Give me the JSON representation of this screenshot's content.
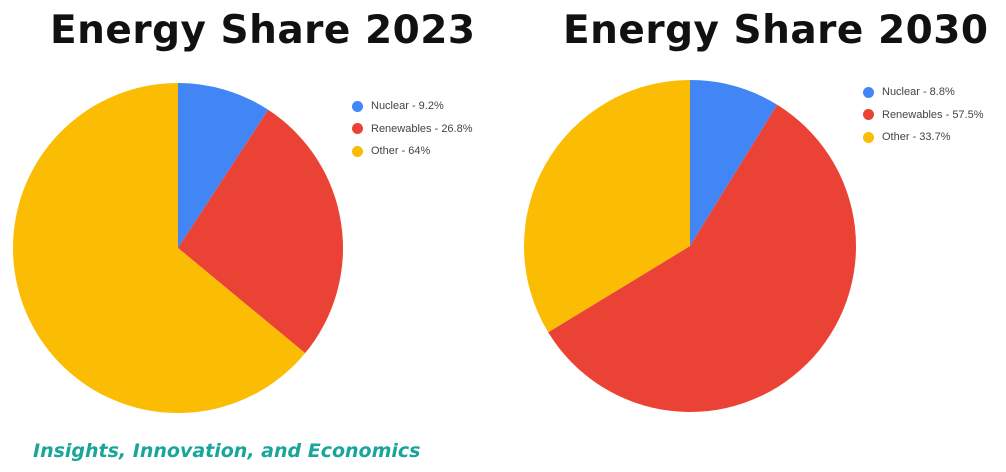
{
  "footer": {
    "tagline": "Insights, Innovation, and Economics"
  },
  "chart_data": [
    {
      "type": "pie",
      "title": "Energy Share 2023",
      "legend_position": "right",
      "slices": [
        {
          "label": "Nuclear - 9.2%",
          "name": "Nuclear",
          "value": 9.2,
          "color": "#4285f4"
        },
        {
          "label": "Renewables - 26.8%",
          "name": "Renewables",
          "value": 26.8,
          "color": "#ea4335"
        },
        {
          "label": "Other - 64%",
          "name": "Other",
          "value": 64,
          "color": "#fbbc04"
        }
      ]
    },
    {
      "type": "pie",
      "title": "Energy Share 2030",
      "legend_position": "right",
      "slices": [
        {
          "label": "Nuclear - 8.8%",
          "name": "Nuclear",
          "value": 8.8,
          "color": "#4285f4"
        },
        {
          "label": "Renewables - 57.5%",
          "name": "Renewables",
          "value": 57.5,
          "color": "#ea4335"
        },
        {
          "label": "Other - 33.7%",
          "name": "Other",
          "value": 33.7,
          "color": "#fbbc04"
        }
      ]
    }
  ]
}
